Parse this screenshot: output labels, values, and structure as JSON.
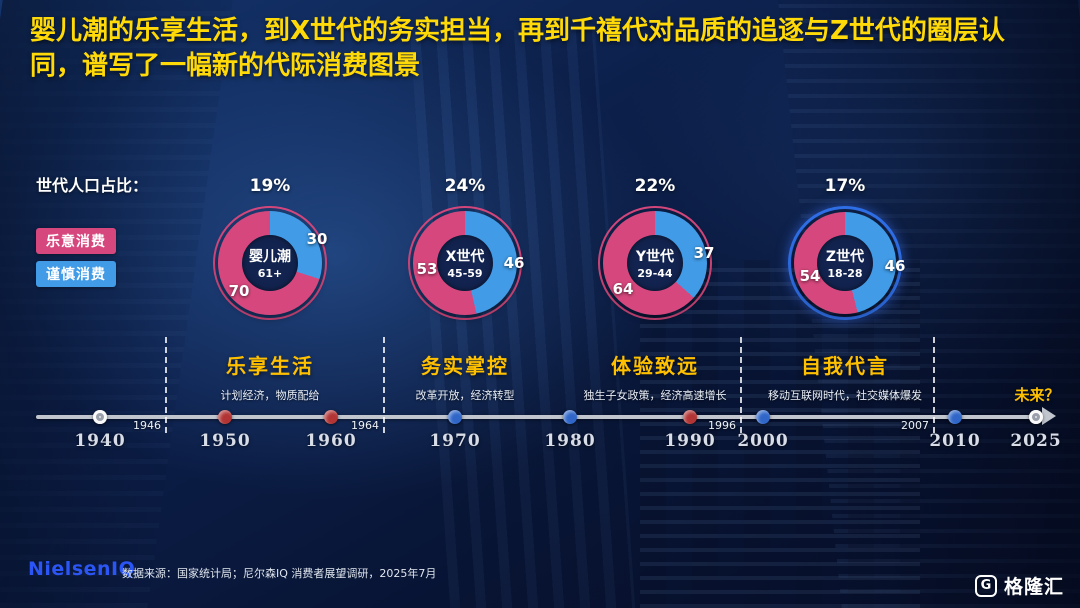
{
  "title": "婴儿潮的乐享生活，到X世代的务实担当，再到千禧代对品质的追逐与Z世代的圈层认同，谱写了一幅新的代际消费图景",
  "section_label": "世代人口占比：",
  "legend": {
    "willing": "乐意消费",
    "cautious": "谨慎消费"
  },
  "colors": {
    "willing_pink": "#d6487d",
    "cautious_blue": "#419be6",
    "title_yellow": "#ffd908",
    "label_yellow": "#ffc000",
    "nielsen_blue": "#2b55f5",
    "dot_red": "#b23434",
    "dot_blue": "#2f66c8",
    "dot_gray": "#e6e6e6",
    "z_ring_blue": "#2f6fe8"
  },
  "chart_data": {
    "type": "pie",
    "title": "世代人口占比",
    "legend": [
      "乐意消费",
      "谨慎消费"
    ],
    "series": [
      {
        "name": "婴儿潮",
        "age_range": "61+",
        "share_pct": 19,
        "share_label": "19%",
        "values": {
          "willing": 70,
          "cautious": 30
        },
        "theme_label": "乐享生活",
        "note": "计划经济，物质配给"
      },
      {
        "name": "X世代",
        "age_range": "45-59",
        "share_pct": 24,
        "share_label": "24%",
        "values": {
          "willing": 53,
          "cautious": 46
        },
        "theme_label": "务实掌控",
        "note": "改革开放，经济转型"
      },
      {
        "name": "Y世代",
        "age_range": "29-44",
        "share_pct": 22,
        "share_label": "22%",
        "values": {
          "willing": 64,
          "cautious": 37
        },
        "theme_label": "体验致远",
        "note": "独生子女政策，经济高速增长"
      },
      {
        "name": "Z世代",
        "age_range": "18-28",
        "share_pct": 17,
        "share_label": "17%",
        "values": {
          "willing": 54,
          "cautious": 46
        },
        "theme_label": "自我代言",
        "note": "移动互联网时代，社交媒体爆发"
      }
    ]
  },
  "timeline": {
    "years": [
      "1940",
      "1950",
      "1960",
      "1970",
      "1980",
      "1990",
      "2000",
      "2010",
      "2025"
    ],
    "dot_colors": [
      "gray",
      "red",
      "red",
      "blue",
      "blue",
      "red",
      "blue",
      "blue",
      "gray"
    ],
    "boundary_years": [
      "1946",
      "1964",
      "1996",
      "2007"
    ],
    "future_label": "未来？"
  },
  "footer": {
    "nielsen_logo": "NielsenIQ",
    "source": "数据来源：国家统计局；尼尔森IQ 消费者展望调研，2025年7月",
    "brand_logo": "格隆汇",
    "brand_icon_letter": "G"
  }
}
